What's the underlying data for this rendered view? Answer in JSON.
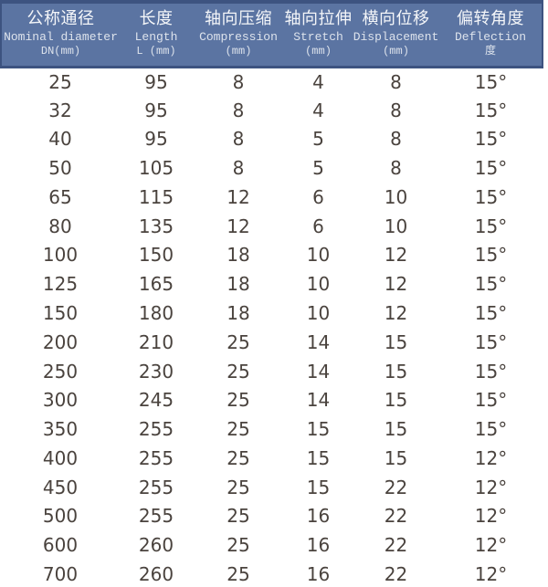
{
  "table": {
    "columns": [
      {
        "zh": "公称通径",
        "en": "Nominal diameter",
        "unit": "DN(mm)"
      },
      {
        "zh": "长度",
        "en": "Length",
        "unit": "L (mm)"
      },
      {
        "zh": "轴向压缩",
        "en": "Compression",
        "unit": "(mm)"
      },
      {
        "zh": "轴向拉伸",
        "en": "Stretch",
        "unit": "(mm)"
      },
      {
        "zh": "横向位移",
        "en": "Displacement",
        "unit": "(mm)"
      },
      {
        "zh": "偏转角度",
        "en": "Deflection",
        "unit": "度"
      }
    ],
    "rows": [
      [
        "25",
        "95",
        "8",
        "4",
        "8",
        "15°"
      ],
      [
        "32",
        "95",
        "8",
        "4",
        "8",
        "15°"
      ],
      [
        "40",
        "95",
        "8",
        "5",
        "8",
        "15°"
      ],
      [
        "50",
        "105",
        "8",
        "5",
        "8",
        "15°"
      ],
      [
        "65",
        "115",
        "12",
        "6",
        "10",
        "15°"
      ],
      [
        "80",
        "135",
        "12",
        "6",
        "10",
        "15°"
      ],
      [
        "100",
        "150",
        "18",
        "10",
        "12",
        "15°"
      ],
      [
        "125",
        "165",
        "18",
        "10",
        "12",
        "15°"
      ],
      [
        "150",
        "180",
        "18",
        "10",
        "12",
        "15°"
      ],
      [
        "200",
        "210",
        "25",
        "14",
        "15",
        "15°"
      ],
      [
        "250",
        "230",
        "25",
        "14",
        "15",
        "15°"
      ],
      [
        "300",
        "245",
        "25",
        "14",
        "15",
        "15°"
      ],
      [
        "350",
        "255",
        "25",
        "15",
        "15",
        "15°"
      ],
      [
        "400",
        "255",
        "25",
        "15",
        "15",
        "12°"
      ],
      [
        "450",
        "255",
        "25",
        "15",
        "22",
        "12°"
      ],
      [
        "500",
        "255",
        "25",
        "16",
        "22",
        "12°"
      ],
      [
        "600",
        "260",
        "25",
        "16",
        "22",
        "12°"
      ],
      [
        "700",
        "260",
        "25",
        "16",
        "22",
        "12°"
      ]
    ]
  },
  "colors": {
    "header_bg": "#5b74a2",
    "header_border": "#3d5380",
    "header_text": "#f4f6f9",
    "header_subtext": "#dde3ec",
    "body_text": "#4a433e",
    "page_bg": "#ffffff"
  }
}
